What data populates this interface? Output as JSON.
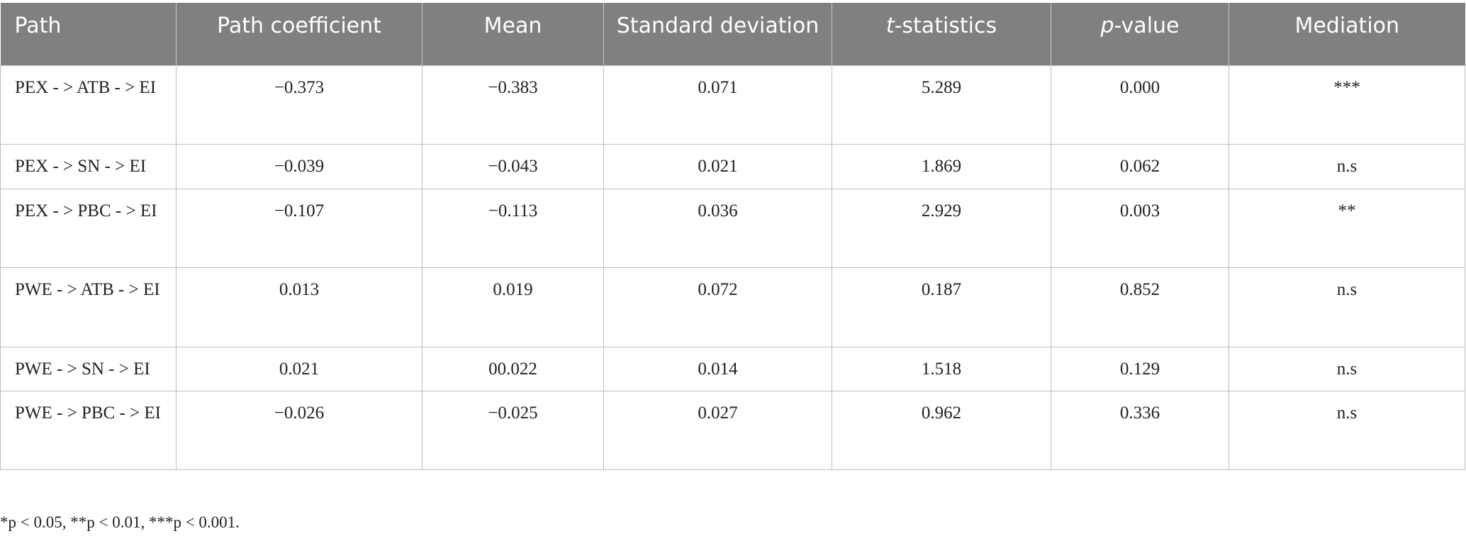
{
  "table": {
    "headers": [
      "Path",
      "Path coefficient",
      "Mean",
      "Standard deviation",
      "t-statistics",
      "p-value",
      "Mediation"
    ],
    "rows": [
      [
        "PEX - > ATB - > EI",
        "−0.373",
        "−0.383",
        "0.071",
        "5.289",
        "0.000",
        "***"
      ],
      [
        "PEX - > SN - > EI",
        "−0.039",
        "−0.043",
        "0.021",
        "1.869",
        "0.062",
        "n.s"
      ],
      [
        "PEX - > PBC - > EI",
        "−0.107",
        "−0.113",
        "0.036",
        "2.929",
        "0.003",
        "**"
      ],
      [
        "PWE - > ATB - > EI",
        "0.013",
        "0.019",
        "0.072",
        "0.187",
        "0.852",
        "n.s"
      ],
      [
        "PWE - > SN - > EI",
        "0.021",
        "00.022",
        "0.014",
        "1.518",
        "0.129",
        "n.s"
      ],
      [
        "PWE - > PBC - > EI",
        "−0.026",
        "−0.025",
        "0.027",
        "0.962",
        "0.336",
        "n.s"
      ]
    ]
  },
  "footnote": "*p < 0.05, **p < 0.01, ***p < 0.001."
}
